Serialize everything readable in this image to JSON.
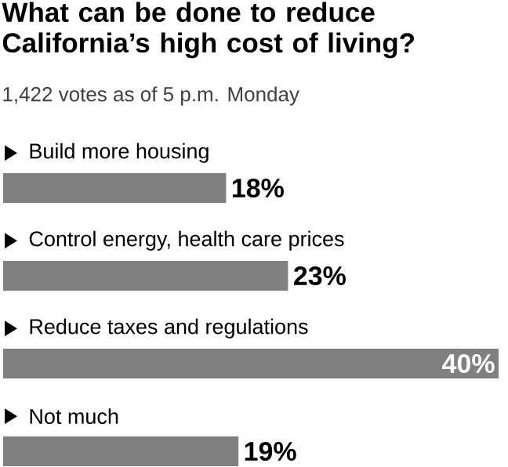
{
  "chart_data": {
    "type": "bar",
    "orientation": "horizontal",
    "title": "What can be done to reduce California’s high cost of living?",
    "subtitle": "1,422 votes as of 5 p.m. Monday",
    "categories": [
      "Build more housing",
      "Control energy, health care prices",
      "Reduce taxes and regulations",
      "Not much"
    ],
    "values": [
      18,
      23,
      40,
      19
    ],
    "value_labels": [
      "18%",
      "23%",
      "40%",
      "19%"
    ],
    "color": "#808080",
    "xlim": [
      0,
      40
    ],
    "tick_labels": false
  }
}
